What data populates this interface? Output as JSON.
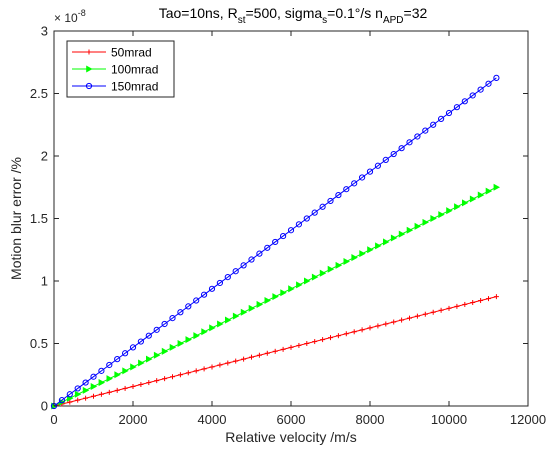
{
  "chart_data": {
    "type": "line",
    "title": {
      "parts": [
        {
          "text": "Tao=10ns, R",
          "shift": "none"
        },
        {
          "text": "st",
          "shift": "sub"
        },
        {
          "text": "=500, sigma",
          "shift": "none"
        },
        {
          "text": "s",
          "shift": "sub"
        },
        {
          "text": "=0.1°/s n",
          "shift": "none"
        },
        {
          "text": "APD",
          "shift": "sub"
        },
        {
          "text": "=32",
          "shift": "none"
        }
      ]
    },
    "xlabel": "Relative velocity /m/s",
    "ylabel": "Motion blur error /%",
    "xlim": [
      0,
      12000
    ],
    "ylim": [
      0,
      3
    ],
    "x_ticks": [
      0,
      2000,
      4000,
      6000,
      8000,
      10000,
      12000
    ],
    "x_tick_labels": [
      "0",
      "2000",
      "4000",
      "6000",
      "8000",
      "10000",
      "12000"
    ],
    "y_ticks": [
      0,
      0.5,
      1,
      1.5,
      2,
      2.5,
      3
    ],
    "y_tick_labels": [
      "0",
      "0.5",
      "1",
      "1.5",
      "2",
      "2.5",
      "3"
    ],
    "y_multiplier": {
      "base": "× 10",
      "exponent": "-8"
    },
    "grid": false,
    "legend_position": "top-left",
    "x_range": {
      "start": 0,
      "end": 11200,
      "points": 57
    },
    "series": [
      {
        "name": "50mrad",
        "color": "#ff0000",
        "marker": "plus",
        "y_end": 0.875
      },
      {
        "name": "100mrad",
        "color": "#00ff00",
        "marker": "triangle-right",
        "y_end": 1.75
      },
      {
        "name": "150mrad",
        "color": "#0000ff",
        "marker": "circle",
        "y_end": 2.625
      }
    ]
  }
}
